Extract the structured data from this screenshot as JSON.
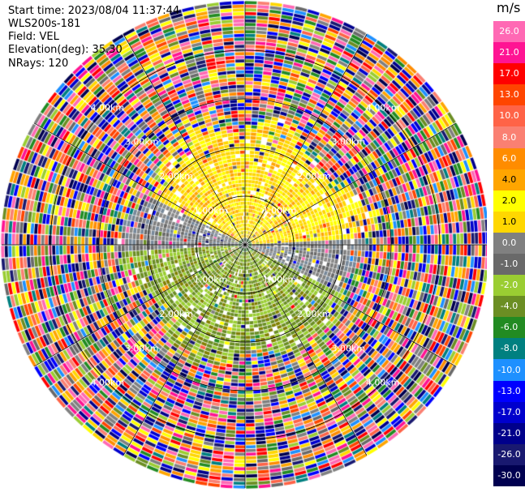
{
  "header": {
    "start_time": "Start time: 2023/08/04 11:37:44",
    "instrument": "WLS200s-181",
    "field": "Field: VEL",
    "elevation": "Elevation(deg): 35.30",
    "nrays": "NRays: 120"
  },
  "chart_data": {
    "type": "heatmap",
    "subtype": "polar-ppi",
    "field": "VEL",
    "units": "m/s",
    "nrays": 120,
    "elevation_deg": 35.3,
    "range_ring_labels": [
      "1.00km",
      "2.00km",
      "3.00km",
      "4.00km"
    ],
    "colorbar": {
      "unit": "m/s",
      "ticks": [
        "26.0",
        "21.0",
        "17.0",
        "13.0",
        "10.0",
        "8.0",
        "6.0",
        "4.0",
        "2.0",
        "1.0",
        "0.0",
        "-1.0",
        "-2.0",
        "-4.0",
        "-6.0",
        "-8.0",
        "-10.0",
        "-13.0",
        "-17.0",
        "-21.0",
        "-26.0",
        "-30.0"
      ],
      "colors": [
        "#ff69b4",
        "#ff1493",
        "#ff0000",
        "#ff4500",
        "#ff6347",
        "#fa8072",
        "#ff8c00",
        "#ffa500",
        "#ffff00",
        "#ffd700",
        "#808080",
        "#696969",
        "#9acd32",
        "#6b8e23",
        "#228b22",
        "#008080",
        "#1e90ff",
        "#0000ff",
        "#0000cd",
        "#00008b",
        "#191970",
        "#000050"
      ]
    }
  }
}
